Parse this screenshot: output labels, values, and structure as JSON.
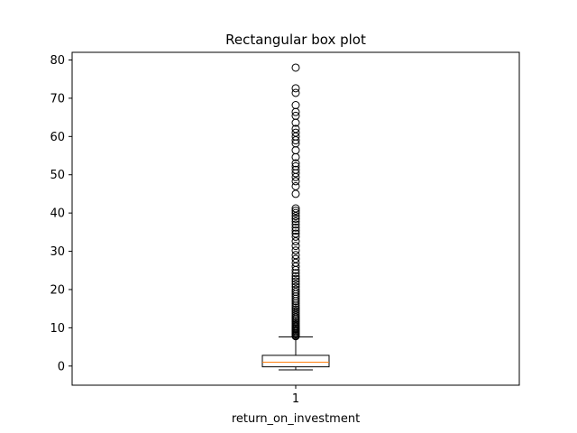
{
  "chart_data": {
    "type": "boxplot",
    "title": "Rectangular box plot",
    "xlabel": "return_on_investment",
    "ylabel": "",
    "categories": [
      "1"
    ],
    "ylim": [
      -5,
      82
    ],
    "yticks": [
      0,
      10,
      20,
      30,
      40,
      50,
      60,
      70,
      80
    ],
    "grid": false,
    "box": {
      "whisker_low": -1,
      "q1": -0.2,
      "median": 1.0,
      "q3": 2.8,
      "whisker_high": 7.6
    },
    "outliers": [
      7.8,
      8.0,
      8.3,
      8.6,
      8.9,
      9.2,
      9.5,
      9.8,
      10.1,
      10.4,
      10.8,
      11.2,
      11.6,
      12.0,
      12.4,
      12.8,
      13.3,
      13.8,
      14.3,
      14.8,
      15.3,
      15.8,
      16.4,
      17.0,
      17.6,
      18.2,
      18.8,
      19.4,
      20.0,
      20.7,
      21.4,
      22.1,
      22.8,
      23.5,
      24.3,
      25.1,
      26.0,
      27.0,
      28.0,
      29.0,
      30.2,
      31.4,
      32.6,
      33.8,
      34.6,
      35.4,
      36.2,
      37.0,
      37.8,
      38.5,
      39.2,
      40.0,
      40.6,
      41.2,
      45.0,
      47.0,
      48.3,
      49.4,
      50.4,
      51.3,
      52.2,
      53.0,
      54.6,
      56.4,
      58.2,
      59.0,
      60.0,
      61.0,
      62.0,
      63.6,
      65.4,
      66.4,
      68.2,
      71.4,
      72.6,
      78.0
    ],
    "colors": {
      "box": "#000000",
      "median": "#ff7f0e",
      "outlier": "#000000"
    }
  }
}
